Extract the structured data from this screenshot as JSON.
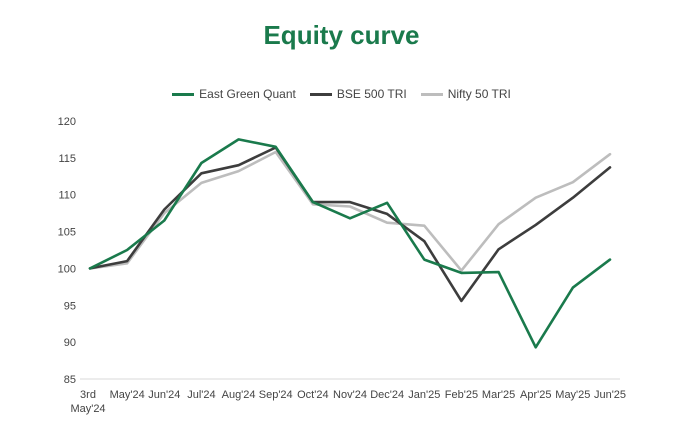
{
  "chart_data": {
    "type": "line",
    "title": "Equity curve",
    "title_color": "#1a7a4c",
    "xlabel": "",
    "ylabel": "",
    "categories": [
      "3rd May'24",
      "May'24",
      "Jun'24",
      "Jul'24",
      "Aug'24",
      "Sep'24",
      "Oct'24",
      "Nov'24",
      "Dec'24",
      "Jan'25",
      "Feb'25",
      "Mar'25",
      "Apr'25",
      "May'25",
      "Jun'25"
    ],
    "ylim": [
      85,
      120
    ],
    "yticks": [
      "85",
      "90",
      "95",
      "100",
      "105",
      "110",
      "115",
      "120"
    ],
    "grid": false,
    "legend_position": "top-center",
    "series": [
      {
        "name": "East Green Quant",
        "color": "#1a7a4c",
        "values": [
          100,
          102.5,
          106.5,
          114.3,
          117.5,
          116.5,
          109,
          106.8,
          108.9,
          101.2,
          99.4,
          99.5,
          89.3,
          97.4,
          101.2
        ]
      },
      {
        "name": "BSE 500 TRI",
        "color": "#3d3d3d",
        "values": [
          100,
          101,
          108,
          112.9,
          114,
          116.4,
          109,
          109,
          107.4,
          103.7,
          95.6,
          102.6,
          105.9,
          109.6,
          113.7
        ]
      },
      {
        "name": "Nifty 50 TRI",
        "color": "#bdbdbd",
        "values": [
          100,
          100.7,
          107.5,
          111.6,
          113.2,
          115.8,
          108.7,
          108.4,
          106.2,
          105.8,
          99.7,
          106,
          109.6,
          111.7,
          115.5
        ]
      }
    ]
  }
}
